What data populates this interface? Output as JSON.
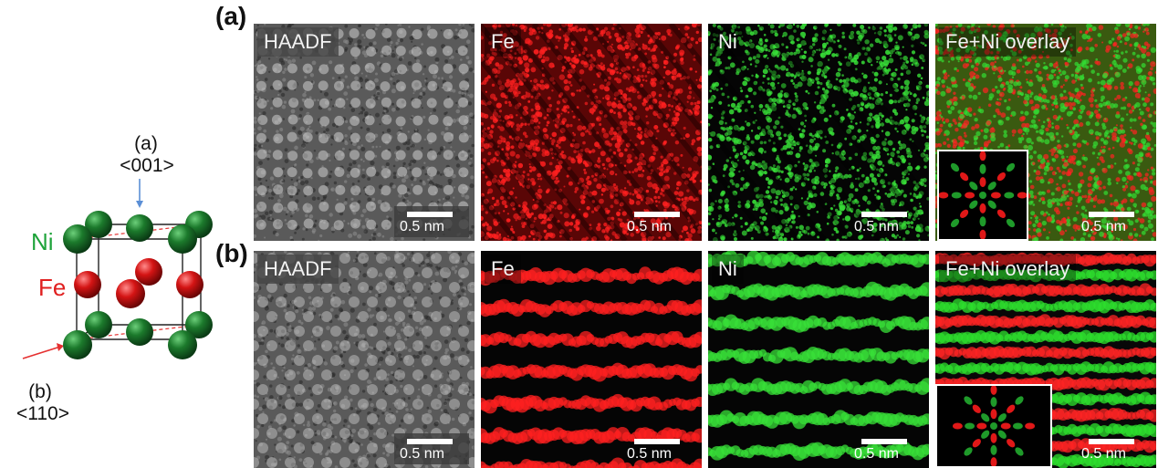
{
  "panels": {
    "a": "(a)",
    "b": "(b)"
  },
  "crystal": {
    "dir_a_label": "(a)",
    "dir_a_index": "<001>",
    "dir_b_label": "(b)",
    "dir_b_index": "<110>",
    "ni_label": "Ni",
    "fe_label": "Fe",
    "colors": {
      "ni": "#1a7a2a",
      "fe": "#d41414",
      "ni_text": "#1ea33a",
      "fe_text": "#e02020",
      "arrow_a": "#5b8fd6",
      "arrow_b": "#e53030"
    }
  },
  "row_a": {
    "tiles": [
      {
        "title": "HAADF",
        "scale": "0.5 nm",
        "kind": "haadf"
      },
      {
        "title": "Fe",
        "scale": "0.5 nm",
        "kind": "fe"
      },
      {
        "title": "Ni",
        "scale": "0.5 nm",
        "kind": "ni"
      },
      {
        "title": "Fe+Ni overlay",
        "scale": "0.5 nm",
        "kind": "overlay"
      }
    ]
  },
  "row_b": {
    "tiles": [
      {
        "title": "HAADF",
        "scale": "0.5 nm",
        "kind": "haadf"
      },
      {
        "title": "Fe",
        "scale": "0.5 nm",
        "kind": "fe"
      },
      {
        "title": "Ni",
        "scale": "0.5 nm",
        "kind": "ni"
      },
      {
        "title": "Fe+Ni overlay",
        "scale": "0.5 nm",
        "kind": "overlay"
      }
    ]
  }
}
